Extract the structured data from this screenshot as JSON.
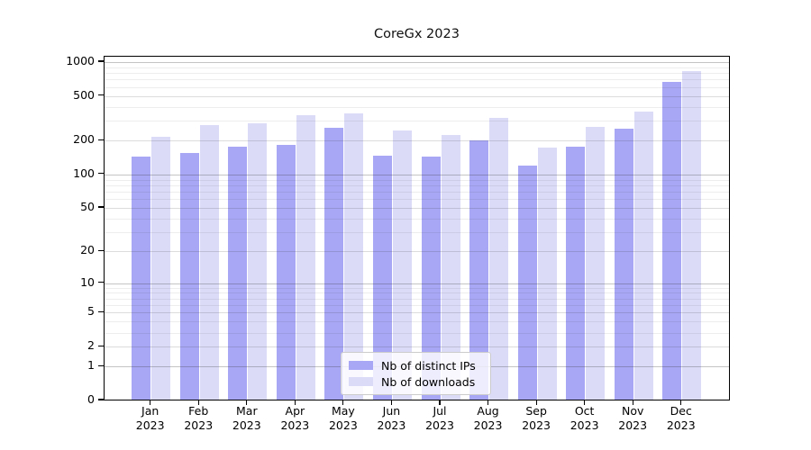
{
  "title": "CoreGx 2023",
  "chart_data": {
    "type": "bar",
    "title": "CoreGx 2023",
    "categories": [
      "Jan 2023",
      "Feb 2023",
      "Mar 2023",
      "Apr 2023",
      "May 2023",
      "Jun 2023",
      "Jul 2023",
      "Aug 2023",
      "Sep 2023",
      "Oct 2023",
      "Nov 2023",
      "Dec 2023"
    ],
    "series": [
      {
        "name": "Nb of distinct IPs",
        "key": "distinct-ips",
        "color": "#a7a7f5",
        "values": [
          145,
          156,
          176,
          185,
          260,
          146,
          145,
          201,
          121,
          176,
          256,
          670
        ]
      },
      {
        "name": "Nb of downloads",
        "key": "downloads",
        "color": "#dbdbf8",
        "values": [
          218,
          275,
          288,
          335,
          350,
          247,
          226,
          320,
          173,
          267,
          365,
          840
        ]
      }
    ],
    "yscale": "log1p",
    "yticks": [
      0,
      1,
      2,
      5,
      10,
      20,
      50,
      100,
      200,
      500,
      1000
    ],
    "ylim": [
      0,
      1150
    ],
    "xlabel": "",
    "ylabel": "",
    "grid": true,
    "legend_position": "lower center"
  },
  "colors": {
    "axis": "#000000",
    "grid_major_decade": "rgba(60,60,60,0.30)",
    "grid_major_other": "rgba(60,60,60,0.18)",
    "grid_minor": "rgba(60,60,60,0.09)",
    "background": "#ffffff"
  }
}
